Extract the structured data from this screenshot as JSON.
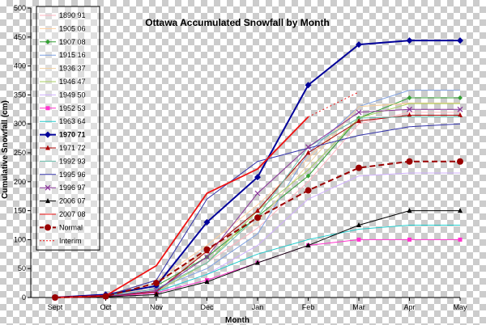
{
  "chart_data": {
    "type": "line",
    "title": "Ottawa Accumulated Snowfall by Month",
    "xlabel": "Month",
    "ylabel": "Cumulative Snowfall (cm)",
    "categories": [
      "Sept",
      "Oct",
      "Nov",
      "Dec",
      "Jan",
      "Feb",
      "Mar",
      "Apr",
      "May"
    ],
    "ylim": [
      0,
      500
    ],
    "yticks": [
      0,
      50,
      100,
      150,
      200,
      250,
      300,
      350,
      400,
      450,
      500
    ],
    "grid": false,
    "legend_position": "left",
    "series": [
      {
        "name": "1890 91",
        "color": "#ffb6c1",
        "marker": "none",
        "values": [
          0,
          5,
          15,
          60,
          120,
          200,
          300,
          320,
          320
        ]
      },
      {
        "name": "1905 06",
        "color": "#ffd0a0",
        "marker": "none",
        "values": [
          0,
          4,
          30,
          90,
          160,
          240,
          330,
          335,
          335
        ]
      },
      {
        "name": "1907 08",
        "color": "#33a033",
        "marker": "diamond",
        "values": [
          0,
          3,
          20,
          70,
          140,
          210,
          310,
          345,
          345
        ]
      },
      {
        "name": "1915 16",
        "color": "#7fa0e0",
        "marker": "none",
        "values": [
          0,
          2,
          15,
          50,
          110,
          250,
          330,
          358,
          358
        ]
      },
      {
        "name": "1936 37",
        "color": "#f2d0a0",
        "marker": "none",
        "values": [
          0,
          3,
          25,
          80,
          130,
          230,
          330,
          336,
          336
        ]
      },
      {
        "name": "1946 47",
        "color": "#a8d060",
        "marker": "none",
        "values": [
          0,
          2,
          10,
          60,
          150,
          220,
          310,
          335,
          335
        ]
      },
      {
        "name": "1949 50",
        "color": "#d0b0ff",
        "marker": "none",
        "values": [
          0,
          2,
          10,
          40,
          90,
          170,
          210,
          215,
          215
        ]
      },
      {
        "name": "1952 53",
        "color": "#ff33cc",
        "marker": "square",
        "values": [
          0,
          1,
          8,
          30,
          60,
          90,
          100,
          100,
          100
        ]
      },
      {
        "name": "1963 64",
        "color": "#22cccc",
        "marker": "none",
        "values": [
          0,
          2,
          10,
          40,
          75,
          100,
          118,
          125,
          125
        ]
      },
      {
        "name": "1970 71",
        "color": "#000099",
        "marker": "diamond",
        "bold": true,
        "values": [
          0,
          5,
          20,
          130,
          208,
          367,
          437,
          444,
          444
        ]
      },
      {
        "name": "1971 72",
        "color": "#aa0000",
        "marker": "triangle",
        "values": [
          0,
          2,
          10,
          80,
          150,
          250,
          305,
          315,
          315
        ]
      },
      {
        "name": "1992 93",
        "color": "#66bbaa",
        "marker": "none",
        "values": [
          0,
          2,
          15,
          60,
          140,
          260,
          310,
          312,
          312
        ]
      },
      {
        "name": "1995 96",
        "color": "#3333aa",
        "marker": "none",
        "values": [
          0,
          3,
          30,
          170,
          235,
          258,
          280,
          295,
          300
        ]
      },
      {
        "name": "1996 97",
        "color": "#883399",
        "marker": "x",
        "values": [
          0,
          2,
          12,
          70,
          180,
          260,
          320,
          325,
          325
        ]
      },
      {
        "name": "2006 07",
        "color": "#000000",
        "marker": "triangle",
        "values": [
          0,
          1,
          5,
          27,
          60,
          90,
          125,
          150,
          150
        ]
      },
      {
        "name": "2007 08",
        "color": "#ee1111",
        "marker": "none",
        "values": [
          0,
          3,
          55,
          180,
          222,
          312,
          null,
          null,
          null
        ]
      },
      {
        "name": "Normal",
        "color": "#990000",
        "marker": "circle",
        "dashed": true,
        "values": [
          0,
          2,
          25,
          83,
          138,
          185,
          224,
          235,
          235
        ]
      },
      {
        "name": "Interim",
        "color": "#ee1111",
        "marker": "none",
        "dotted": true,
        "values": [
          null,
          null,
          null,
          null,
          null,
          312,
          355,
          null,
          null
        ]
      }
    ]
  }
}
